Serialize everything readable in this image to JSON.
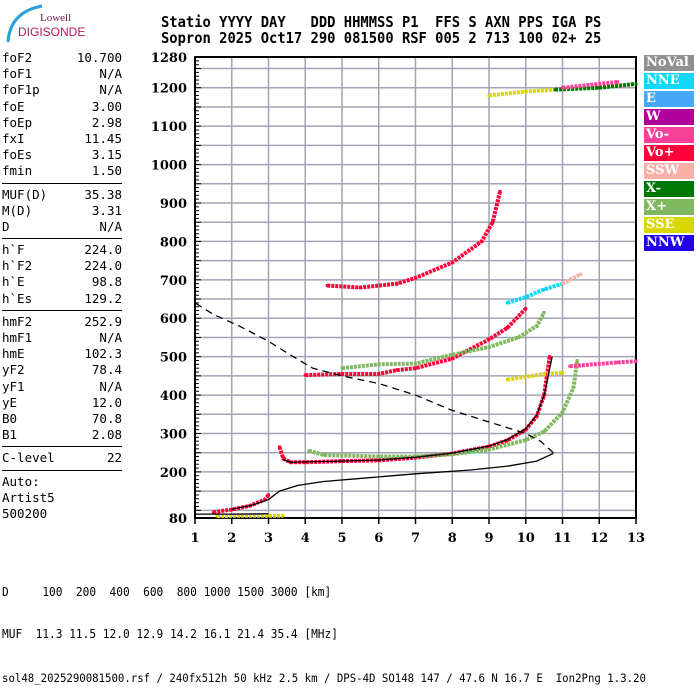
{
  "logo": {
    "line1": "Lowell",
    "line2": "DIGISONDE"
  },
  "header": {
    "line1": "Statio YYYY DAY   DDD HHMMSS P1  FFS S AXN PPS IGA PS",
    "line2": "Sopron 2025 Oct17 290 081500 RSF 005 2 713 100 02+ 25"
  },
  "panel": {
    "groups": [
      [
        [
          "foF2",
          "10.700"
        ],
        [
          "foF1",
          "N/A"
        ],
        [
          "foF1p",
          "N/A"
        ],
        [
          "foE",
          "3.00"
        ],
        [
          "foEp",
          "2.98"
        ],
        [
          "fxI",
          "11.45"
        ],
        [
          "foEs",
          "3.15"
        ],
        [
          "fmin",
          "1.50"
        ]
      ],
      [
        [
          "MUF(D)",
          "35.38"
        ],
        [
          "M(D)",
          "3.31"
        ],
        [
          "D",
          "N/A"
        ]
      ],
      [
        [
          "h`F",
          "224.0"
        ],
        [
          "h`F2",
          "224.0"
        ],
        [
          "h`E",
          "98.8"
        ],
        [
          "h`Es",
          "129.2"
        ]
      ],
      [
        [
          "hmF2",
          "252.9"
        ],
        [
          "hmF1",
          "N/A"
        ],
        [
          "hmE",
          "102.3"
        ],
        [
          "yF2",
          "78.4"
        ],
        [
          "yF1",
          "N/A"
        ],
        [
          "yE",
          "12.0"
        ],
        [
          "B0",
          "70.8"
        ],
        [
          "B1",
          "2.08"
        ]
      ],
      [
        [
          "C-level",
          "22"
        ]
      ]
    ],
    "auto": [
      "Auto:",
      "Artist5",
      "500200"
    ]
  },
  "legend": [
    {
      "label": "NoVal",
      "color": "#909090"
    },
    {
      "label": "NNE",
      "color": "#10d8f8"
    },
    {
      "label": "E",
      "color": "#48a8f8"
    },
    {
      "label": "W",
      "color": "#b0009a"
    },
    {
      "label": "Vo-",
      "color": "#f8409a"
    },
    {
      "label": "Vo+",
      "color": "#ff0038"
    },
    {
      "label": "SSW",
      "color": "#f8b0a8"
    },
    {
      "label": "X-",
      "color": "#007800"
    },
    {
      "label": "X+",
      "color": "#80b860"
    },
    {
      "label": "SSE",
      "color": "#d8d800"
    },
    {
      "label": "NNW",
      "color": "#2000e8"
    }
  ],
  "bottom": {
    "d_row": "D     100  200  400  600  800 1000 1500 3000 [km]",
    "muf_row": "MUF  11.3 11.5 12.0 12.9 14.2 16.1 21.4 35.4 [MHz]",
    "footer": "sol48_2025290081500.rsf / 240fx512h 50 kHz 2.5 km / DPS-4D SO148 147 / 47.6 N 16.7 E  Ion2Png 1.3.20"
  },
  "chart_data": {
    "type": "scatter",
    "xlim": [
      1,
      13
    ],
    "ylim": [
      80,
      1280
    ],
    "xticks": [
      1,
      2,
      3,
      4,
      5,
      6,
      7,
      8,
      9,
      10,
      11,
      12,
      13
    ],
    "yticks": [
      80,
      200,
      300,
      400,
      500,
      600,
      700,
      800,
      900,
      1000,
      1100,
      1200,
      1280
    ],
    "grid": true,
    "traces": [
      {
        "color": "Vo+",
        "points": [
          [
            1.5,
            95
          ],
          [
            2,
            102
          ],
          [
            2.5,
            112
          ],
          [
            2.9,
            128
          ],
          [
            3.0,
            140
          ]
        ]
      },
      {
        "color": "SSE",
        "points": [
          [
            1.6,
            85
          ],
          [
            2.2,
            86
          ],
          [
            3,
            86
          ],
          [
            3.4,
            86
          ]
        ]
      },
      {
        "color": "Vo+",
        "points": [
          [
            3.3,
            265
          ],
          [
            3.4,
            235
          ],
          [
            3.6,
            225
          ],
          [
            4,
            225
          ],
          [
            5,
            228
          ],
          [
            6,
            230
          ],
          [
            7,
            237
          ],
          [
            8,
            248
          ],
          [
            9,
            266
          ],
          [
            9.5,
            282
          ],
          [
            10,
            310
          ],
          [
            10.3,
            345
          ],
          [
            10.5,
            400
          ],
          [
            10.65,
            500
          ]
        ]
      },
      {
        "color": "X+",
        "points": [
          [
            4.1,
            255
          ],
          [
            4.5,
            244
          ],
          [
            6,
            240
          ],
          [
            7,
            240
          ],
          [
            8,
            246
          ],
          [
            9,
            258
          ],
          [
            10,
            283
          ],
          [
            10.5,
            305
          ],
          [
            11,
            355
          ],
          [
            11.3,
            420
          ],
          [
            11.4,
            490
          ]
        ]
      },
      {
        "color": "Vo+",
        "points": [
          [
            4,
            452
          ],
          [
            5,
            455
          ],
          [
            6,
            455
          ],
          [
            6.5,
            465
          ],
          [
            7,
            470
          ],
          [
            8,
            495
          ],
          [
            9,
            545
          ],
          [
            9.5,
            575
          ],
          [
            10,
            625
          ]
        ]
      },
      {
        "color": "X+",
        "points": [
          [
            5,
            470
          ],
          [
            6,
            480
          ],
          [
            7,
            482
          ],
          [
            8,
            505
          ],
          [
            9,
            525
          ],
          [
            9.8,
            550
          ],
          [
            10.3,
            580
          ],
          [
            10.5,
            615
          ]
        ]
      },
      {
        "color": "Vo+",
        "points": [
          [
            4.6,
            685
          ],
          [
            5.5,
            680
          ],
          [
            6.5,
            690
          ],
          [
            7,
            705
          ],
          [
            8,
            745
          ],
          [
            8.8,
            800
          ],
          [
            9.1,
            850
          ],
          [
            9.3,
            930
          ]
        ]
      },
      {
        "color": "SSE",
        "points": [
          [
            9,
            1180
          ],
          [
            10,
            1190
          ],
          [
            10.8,
            1195
          ]
        ]
      },
      {
        "color": "X-",
        "points": [
          [
            10.8,
            1195
          ],
          [
            12,
            1200
          ],
          [
            13,
            1210
          ]
        ]
      },
      {
        "color": "Vo-",
        "points": [
          [
            11,
            1200
          ],
          [
            12.5,
            1215
          ]
        ]
      },
      {
        "color": "SSE",
        "points": [
          [
            9.5,
            440
          ],
          [
            10.5,
            455
          ],
          [
            11,
            458
          ]
        ]
      },
      {
        "color": "Vo-",
        "points": [
          [
            11.2,
            475
          ],
          [
            12.5,
            485
          ],
          [
            13,
            488
          ]
        ]
      },
      {
        "color": "NNE",
        "points": [
          [
            9.5,
            640
          ],
          [
            10,
            655
          ],
          [
            10.5,
            675
          ],
          [
            11,
            690
          ]
        ]
      },
      {
        "color": "SSW",
        "points": [
          [
            11,
            690
          ],
          [
            11.5,
            715
          ]
        ]
      }
    ],
    "fit_curves": [
      {
        "style": "solid",
        "points": [
          [
            1,
            90
          ],
          [
            1.5,
            90
          ],
          [
            2,
            90
          ],
          [
            3,
            91
          ]
        ]
      },
      {
        "style": "solid",
        "points": [
          [
            2,
            103
          ],
          [
            2.5,
            112
          ],
          [
            3,
            128
          ],
          [
            3.3,
            150
          ],
          [
            3.8,
            165
          ],
          [
            4.5,
            175
          ],
          [
            5.5,
            183
          ],
          [
            7,
            195
          ],
          [
            8.5,
            205
          ],
          [
            9.5,
            215
          ],
          [
            10.3,
            228
          ],
          [
            10.75,
            248
          ]
        ]
      },
      {
        "style": "solid",
        "points": [
          [
            3.4,
            232
          ],
          [
            3.6,
            225
          ],
          [
            4,
            226
          ],
          [
            5,
            228
          ],
          [
            6,
            231
          ],
          [
            7,
            238
          ],
          [
            8,
            249
          ],
          [
            9,
            267
          ],
          [
            9.5,
            284
          ],
          [
            10,
            312
          ],
          [
            10.3,
            348
          ],
          [
            10.5,
            400
          ],
          [
            10.72,
            500
          ]
        ]
      },
      {
        "style": "dashed",
        "points": [
          [
            10.75,
            250
          ],
          [
            10.4,
            280
          ],
          [
            10,
            300
          ],
          [
            9,
            330
          ],
          [
            8,
            360
          ],
          [
            7,
            400
          ],
          [
            6,
            430
          ],
          [
            5,
            450
          ],
          [
            4.2,
            470
          ],
          [
            3.5,
            510
          ],
          [
            3,
            540
          ],
          [
            2.2,
            580
          ],
          [
            1.5,
            610
          ],
          [
            1,
            640
          ]
        ]
      }
    ]
  }
}
